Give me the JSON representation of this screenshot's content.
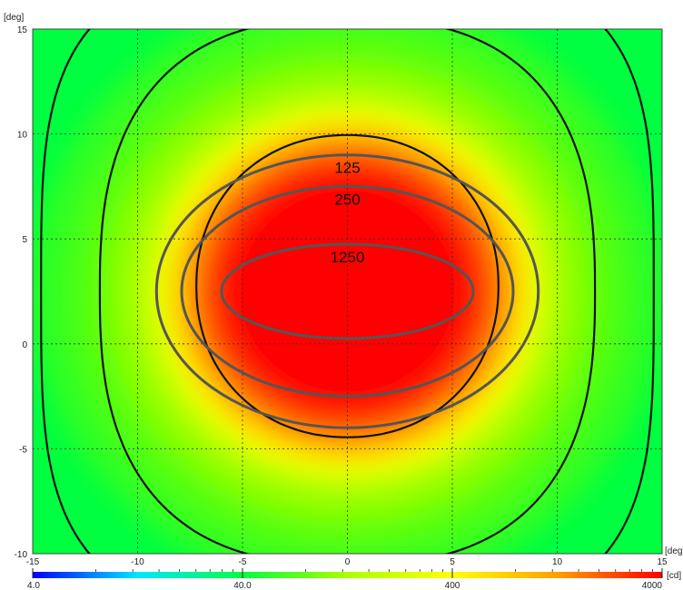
{
  "chart_data": {
    "type": "heatmap",
    "x_unit": "[deg]",
    "y_unit": "[deg]",
    "xlim": [
      -15,
      15
    ],
    "ylim": [
      -10,
      15
    ],
    "x_ticks": [
      -15,
      -10,
      -5,
      0,
      5,
      10,
      15
    ],
    "y_ticks": [
      -10,
      -5,
      0,
      5,
      10,
      15
    ],
    "grid": true,
    "colorbar": {
      "unit": "[cd]",
      "scale": "log",
      "range": [
        4.0,
        4000
      ],
      "tick_labels": [
        "4.0",
        "40.0",
        "400",
        "4000"
      ],
      "tick_values": [
        4,
        40,
        400,
        4000
      ],
      "colors": [
        "#0000ff",
        "#00e6ff",
        "#00ff40",
        "#aaff00",
        "#ffff00",
        "#ffa000",
        "#ff0000"
      ]
    },
    "intensity_peak": {
      "x": 0,
      "y": 2.5,
      "value": 4000
    },
    "black_contours": [
      {
        "shape": "circle-ish",
        "center": [
          0,
          2.75
        ],
        "rx": 7.2,
        "ry": 7.2
      },
      {
        "shape": "rounded-square",
        "center": [
          0,
          2.5
        ],
        "rx": 11.8,
        "ry": 13.0
      },
      {
        "shape": "rounded-square",
        "center": [
          0,
          2.5
        ],
        "rx": 14.6,
        "ry": 15.5
      }
    ],
    "labeled_contours": [
      {
        "label": "125",
        "center": [
          0,
          2.5
        ],
        "rx": 9.1,
        "ry": 6.5
      },
      {
        "label": "250",
        "center": [
          0,
          2.5
        ],
        "rx": 7.9,
        "ry": 5.0
      },
      {
        "label": "1250",
        "center": [
          0,
          2.5
        ],
        "rx": 6.0,
        "ry": 2.25
      }
    ]
  }
}
